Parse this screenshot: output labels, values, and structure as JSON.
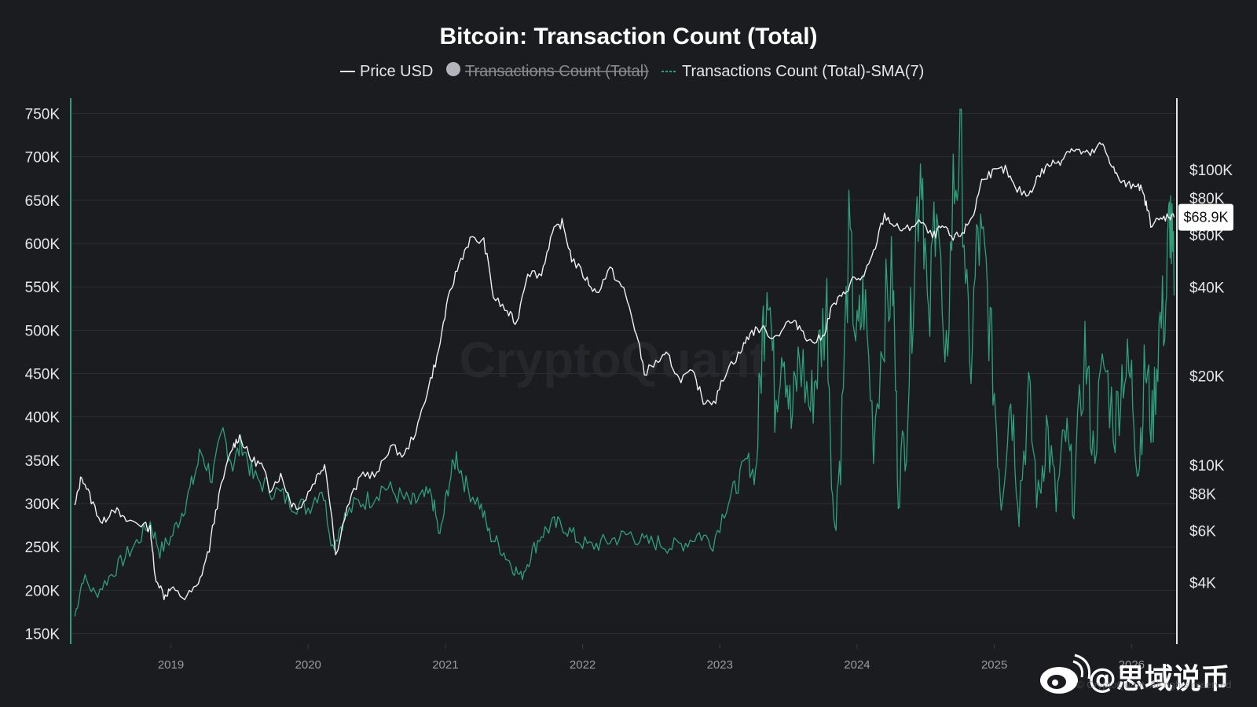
{
  "chart_data": {
    "type": "line",
    "title": "Bitcoin: Transaction Count (Total)",
    "legend": [
      {
        "name": "Price USD",
        "color": "#e6e6e6",
        "enabled": true
      },
      {
        "name": "Transactions Count (Total)",
        "color": "#b4b4bc",
        "enabled": false
      },
      {
        "name": "Transactions Count (Total)-SMA(7)",
        "color": "#2ea079",
        "enabled": true
      }
    ],
    "x_ticks": [
      "2019",
      "2020",
      "2021",
      "2022",
      "2023",
      "2024",
      "2025",
      "2026"
    ],
    "x_range": [
      2018.27,
      2026.33
    ],
    "y_left": {
      "ticks": [
        "750K",
        "700K",
        "650K",
        "600K",
        "550K",
        "500K",
        "450K",
        "400K",
        "350K",
        "300K",
        "250K",
        "200K",
        "150K"
      ],
      "tick_values": [
        750000,
        700000,
        650000,
        600000,
        550000,
        500000,
        450000,
        400000,
        350000,
        300000,
        250000,
        200000,
        150000
      ],
      "range": [
        145000,
        755000
      ]
    },
    "y_right": {
      "scale": "log",
      "ticks": [
        "$100K",
        "$80K",
        "$60K",
        "$40K",
        "$20K",
        "$10K",
        "$8K",
        "$6K",
        "$4K"
      ],
      "tick_values": [
        100000,
        80000,
        60000,
        40000,
        20000,
        10000,
        8000,
        6000,
        4000
      ]
    },
    "current_price_label": "$68.9K",
    "series": [
      {
        "name": "Price USD",
        "axis": "right",
        "points": [
          [
            2018.3,
            7200
          ],
          [
            2018.35,
            9200
          ],
          [
            2018.42,
            7600
          ],
          [
            2018.5,
            6300
          ],
          [
            2018.58,
            7200
          ],
          [
            2018.66,
            6500
          ],
          [
            2018.75,
            6400
          ],
          [
            2018.85,
            6100
          ],
          [
            2018.88,
            4300
          ],
          [
            2018.95,
            3600
          ],
          [
            2019.0,
            3800
          ],
          [
            2019.1,
            3550
          ],
          [
            2019.2,
            3900
          ],
          [
            2019.28,
            5200
          ],
          [
            2019.35,
            7800
          ],
          [
            2019.45,
            11500
          ],
          [
            2019.5,
            12500
          ],
          [
            2019.58,
            10500
          ],
          [
            2019.66,
            10000
          ],
          [
            2019.72,
            8300
          ],
          [
            2019.8,
            9200
          ],
          [
            2019.88,
            7400
          ],
          [
            2019.95,
            7200
          ],
          [
            2020.05,
            8900
          ],
          [
            2020.12,
            10100
          ],
          [
            2020.2,
            4900
          ],
          [
            2020.3,
            7500
          ],
          [
            2020.4,
            9400
          ],
          [
            2020.5,
            9200
          ],
          [
            2020.6,
            11600
          ],
          [
            2020.7,
            10700
          ],
          [
            2020.8,
            13500
          ],
          [
            2020.88,
            18500
          ],
          [
            2020.95,
            24000
          ],
          [
            2021.02,
            36000
          ],
          [
            2021.1,
            48000
          ],
          [
            2021.18,
            58000
          ],
          [
            2021.28,
            57000
          ],
          [
            2021.35,
            37000
          ],
          [
            2021.45,
            33000
          ],
          [
            2021.52,
            30000
          ],
          [
            2021.6,
            45000
          ],
          [
            2021.7,
            44000
          ],
          [
            2021.78,
            61000
          ],
          [
            2021.85,
            66000
          ],
          [
            2021.92,
            50000
          ],
          [
            2022.02,
            43000
          ],
          [
            2022.1,
            38000
          ],
          [
            2022.2,
            46000
          ],
          [
            2022.3,
            39000
          ],
          [
            2022.38,
            29000
          ],
          [
            2022.45,
            20500
          ],
          [
            2022.55,
            22500
          ],
          [
            2022.62,
            23500
          ],
          [
            2022.7,
            19500
          ],
          [
            2022.8,
            20500
          ],
          [
            2022.88,
            16500
          ],
          [
            2022.97,
            16600
          ],
          [
            2023.05,
            21000
          ],
          [
            2023.15,
            24000
          ],
          [
            2023.22,
            28000
          ],
          [
            2023.3,
            29000
          ],
          [
            2023.4,
            27000
          ],
          [
            2023.5,
            30500
          ],
          [
            2023.58,
            29500
          ],
          [
            2023.66,
            26000
          ],
          [
            2023.75,
            27000
          ],
          [
            2023.82,
            34500
          ],
          [
            2023.9,
            37500
          ],
          [
            2023.97,
            42500
          ],
          [
            2024.05,
            43000
          ],
          [
            2024.12,
            52000
          ],
          [
            2024.2,
            70000
          ],
          [
            2024.28,
            64000
          ],
          [
            2024.35,
            62000
          ],
          [
            2024.45,
            67000
          ],
          [
            2024.55,
            59000
          ],
          [
            2024.62,
            64000
          ],
          [
            2024.7,
            58000
          ],
          [
            2024.78,
            62000
          ],
          [
            2024.85,
            71000
          ],
          [
            2024.92,
            95000
          ],
          [
            2025.0,
            98000
          ],
          [
            2025.08,
            100000
          ],
          [
            2025.15,
            86000
          ],
          [
            2025.25,
            82000
          ],
          [
            2025.32,
            95000
          ],
          [
            2025.4,
            104000
          ],
          [
            2025.48,
            107000
          ],
          [
            2025.55,
            118000
          ],
          [
            2025.62,
            115000
          ],
          [
            2025.7,
            112000
          ],
          [
            2025.78,
            122000
          ],
          [
            2025.84,
            108000
          ],
          [
            2025.9,
            93000
          ],
          [
            2025.97,
            88000
          ],
          [
            2026.05,
            90000
          ],
          [
            2026.1,
            78000
          ],
          [
            2026.14,
            66000
          ],
          [
            2026.2,
            67000
          ],
          [
            2026.27,
            70000
          ],
          [
            2026.31,
            68900
          ]
        ]
      },
      {
        "name": "Transactions Count (Total)-SMA(7)",
        "axis": "left",
        "points": [
          [
            2018.3,
            170000
          ],
          [
            2018.36,
            215000
          ],
          [
            2018.45,
            195000
          ],
          [
            2018.55,
            215000
          ],
          [
            2018.65,
            235000
          ],
          [
            2018.75,
            255000
          ],
          [
            2018.85,
            278000
          ],
          [
            2018.92,
            245000
          ],
          [
            2019.0,
            260000
          ],
          [
            2019.08,
            290000
          ],
          [
            2019.15,
            320000
          ],
          [
            2019.22,
            360000
          ],
          [
            2019.3,
            330000
          ],
          [
            2019.38,
            380000
          ],
          [
            2019.45,
            345000
          ],
          [
            2019.52,
            370000
          ],
          [
            2019.6,
            330000
          ],
          [
            2019.7,
            320000
          ],
          [
            2019.8,
            310000
          ],
          [
            2019.9,
            300000
          ],
          [
            2020.0,
            295000
          ],
          [
            2020.1,
            320000
          ],
          [
            2020.18,
            250000
          ],
          [
            2020.25,
            280000
          ],
          [
            2020.35,
            300000
          ],
          [
            2020.45,
            305000
          ],
          [
            2020.55,
            320000
          ],
          [
            2020.65,
            310000
          ],
          [
            2020.75,
            300000
          ],
          [
            2020.82,
            305000
          ],
          [
            2020.9,
            310000
          ],
          [
            2020.96,
            260000
          ],
          [
            2021.02,
            320000
          ],
          [
            2021.08,
            355000
          ],
          [
            2021.15,
            320000
          ],
          [
            2021.25,
            300000
          ],
          [
            2021.32,
            265000
          ],
          [
            2021.4,
            250000
          ],
          [
            2021.48,
            230000
          ],
          [
            2021.55,
            215000
          ],
          [
            2021.62,
            240000
          ],
          [
            2021.7,
            265000
          ],
          [
            2021.78,
            275000
          ],
          [
            2021.86,
            275000
          ],
          [
            2021.95,
            260000
          ],
          [
            2022.05,
            250000
          ],
          [
            2022.15,
            255000
          ],
          [
            2022.25,
            260000
          ],
          [
            2022.35,
            265000
          ],
          [
            2022.45,
            255000
          ],
          [
            2022.55,
            255000
          ],
          [
            2022.65,
            250000
          ],
          [
            2022.75,
            255000
          ],
          [
            2022.85,
            265000
          ],
          [
            2022.95,
            255000
          ],
          [
            2023.05,
            300000
          ],
          [
            2023.12,
            320000
          ],
          [
            2023.2,
            350000
          ],
          [
            2023.26,
            330000
          ],
          [
            2023.31,
            490000
          ],
          [
            2023.35,
            580000
          ],
          [
            2023.4,
            420000
          ],
          [
            2023.46,
            500000
          ],
          [
            2023.52,
            390000
          ],
          [
            2023.58,
            470000
          ],
          [
            2023.66,
            410000
          ],
          [
            2023.72,
            470000
          ],
          [
            2023.78,
            530000
          ],
          [
            2023.83,
            270000
          ],
          [
            2023.88,
            360000
          ],
          [
            2023.94,
            600000
          ],
          [
            2024.0,
            480000
          ],
          [
            2024.05,
            540000
          ],
          [
            2024.12,
            380000
          ],
          [
            2024.2,
            520000
          ],
          [
            2024.26,
            560000
          ],
          [
            2024.3,
            320000
          ],
          [
            2024.36,
            390000
          ],
          [
            2024.42,
            600000
          ],
          [
            2024.47,
            715000
          ],
          [
            2024.52,
            480000
          ],
          [
            2024.58,
            690000
          ],
          [
            2024.64,
            420000
          ],
          [
            2024.7,
            660000
          ],
          [
            2024.76,
            715000
          ],
          [
            2024.82,
            440000
          ],
          [
            2024.88,
            610000
          ],
          [
            2024.94,
            560000
          ],
          [
            2025.0,
            430000
          ],
          [
            2025.05,
            310000
          ],
          [
            2025.12,
            430000
          ],
          [
            2025.18,
            300000
          ],
          [
            2025.25,
            420000
          ],
          [
            2025.32,
            300000
          ],
          [
            2025.38,
            390000
          ],
          [
            2025.45,
            300000
          ],
          [
            2025.52,
            380000
          ],
          [
            2025.58,
            310000
          ],
          [
            2025.66,
            480000
          ],
          [
            2025.72,
            360000
          ],
          [
            2025.8,
            460000
          ],
          [
            2025.88,
            390000
          ],
          [
            2025.94,
            460000
          ],
          [
            2026.0,
            440000
          ],
          [
            2026.05,
            340000
          ],
          [
            2026.1,
            460000
          ],
          [
            2026.15,
            390000
          ],
          [
            2026.2,
            500000
          ],
          [
            2026.25,
            530000
          ],
          [
            2026.28,
            640000
          ],
          [
            2026.31,
            540000
          ]
        ]
      }
    ]
  },
  "watermark_text": "CryptoQuant",
  "footer": {
    "weibo_handle": "@思域说币",
    "copyright": "© CryptoQuant. All rights reserved"
  }
}
